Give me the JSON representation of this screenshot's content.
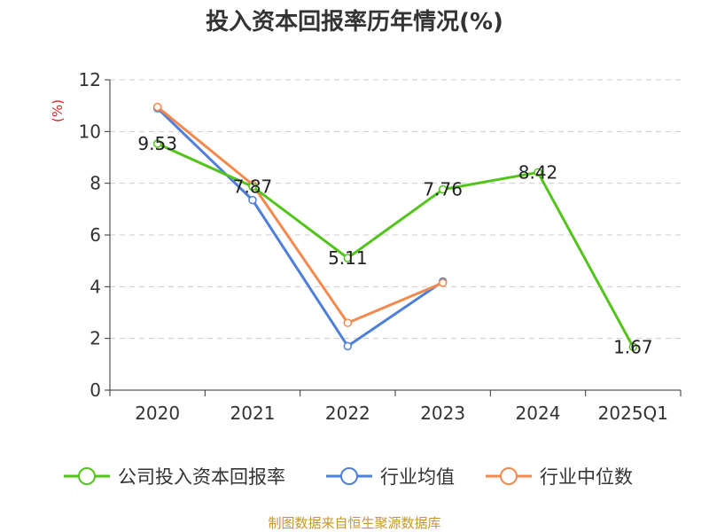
{
  "chart_data": {
    "type": "line",
    "title": "投入资本回报率历年情况(%)",
    "ylabel": "(%)",
    "xlabel": "",
    "categories": [
      "2020",
      "2021",
      "2022",
      "2023",
      "2024",
      "2025Q1"
    ],
    "ylim": [
      0,
      12
    ],
    "yticks": [
      0,
      2,
      4,
      6,
      8,
      10,
      12
    ],
    "grid": true,
    "legend_position": "bottom",
    "series": [
      {
        "name": "公司投入资本回报率",
        "color": "#52c41a",
        "values": [
          9.53,
          7.87,
          5.11,
          7.76,
          8.42,
          1.67
        ],
        "labels": [
          "9.53",
          "7.87",
          "5.11",
          "7.76",
          "8.42",
          "1.67"
        ]
      },
      {
        "name": "行业均值",
        "color": "#4f7fd8",
        "values": [
          10.9,
          7.35,
          1.7,
          4.2,
          null,
          null
        ]
      },
      {
        "name": "行业中位数",
        "color": "#f4894e",
        "values": [
          10.95,
          7.95,
          2.6,
          4.15,
          null,
          null
        ]
      }
    ]
  },
  "footer": {
    "source": "制图数据来自恒生聚源数据库"
  }
}
